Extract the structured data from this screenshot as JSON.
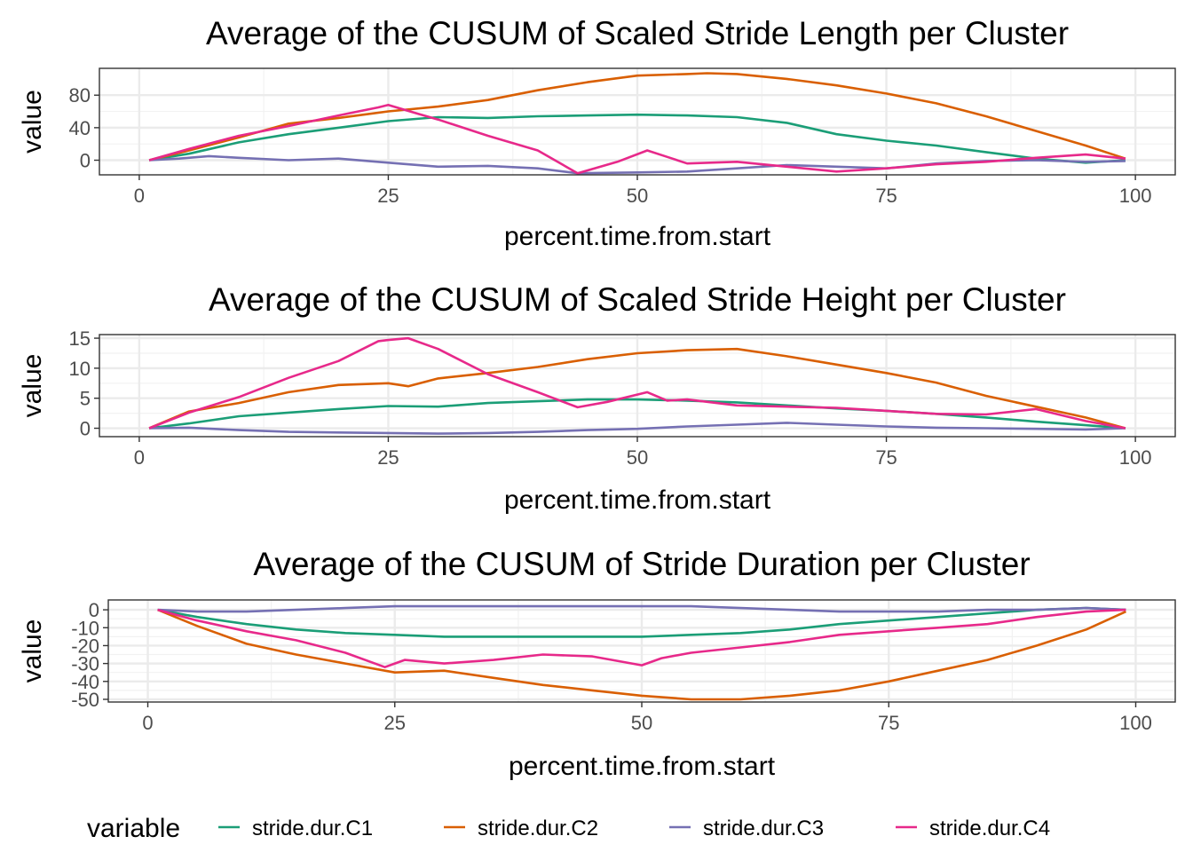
{
  "chart_data": [
    {
      "type": "line",
      "title": "Average of the CUSUM of Scaled Stride Length per Cluster",
      "xlabel": "percent.time.from.start",
      "ylabel": "value",
      "xlim": [
        -4,
        104
      ],
      "ylim": [
        -18,
        113
      ],
      "xticks": [
        0,
        25,
        50,
        75,
        100
      ],
      "yticks": [
        0,
        40,
        80
      ],
      "grid": true,
      "series": [
        {
          "name": "stride.dur.C1",
          "x": [
            1,
            5,
            10,
            15,
            20,
            25,
            30,
            35,
            40,
            45,
            50,
            55,
            60,
            65,
            70,
            75,
            80,
            85,
            90,
            95,
            99
          ],
          "y": [
            0,
            8,
            22,
            32,
            40,
            48,
            53,
            52,
            54,
            55,
            56,
            55,
            53,
            46,
            32,
            24,
            18,
            10,
            2,
            -3,
            0
          ]
        },
        {
          "name": "stride.dur.C2",
          "x": [
            1,
            5,
            10,
            15,
            20,
            25,
            30,
            35,
            40,
            45,
            50,
            55,
            57,
            60,
            65,
            70,
            75,
            80,
            85,
            90,
            95,
            99
          ],
          "y": [
            0,
            12,
            28,
            45,
            52,
            60,
            66,
            74,
            86,
            96,
            104,
            106,
            107,
            106,
            100,
            92,
            82,
            70,
            54,
            36,
            18,
            2
          ]
        },
        {
          "name": "stride.dur.C3",
          "x": [
            1,
            4,
            7,
            10,
            15,
            20,
            25,
            30,
            35,
            40,
            44,
            50,
            55,
            60,
            65,
            70,
            75,
            80,
            85,
            90,
            95,
            99
          ],
          "y": [
            0,
            2,
            5,
            3,
            0,
            2,
            -3,
            -8,
            -7,
            -10,
            -16,
            -15,
            -14,
            -10,
            -6,
            -8,
            -10,
            -4,
            -1,
            0,
            -2,
            -1
          ]
        },
        {
          "name": "stride.dur.C4",
          "x": [
            1,
            5,
            10,
            15,
            20,
            24,
            25,
            28,
            30,
            35,
            40,
            44,
            48,
            51,
            53,
            55,
            60,
            65,
            70,
            75,
            80,
            85,
            90,
            95,
            99
          ],
          "y": [
            0,
            14,
            30,
            42,
            55,
            65,
            68,
            57,
            50,
            30,
            12,
            -16,
            -2,
            12,
            4,
            -4,
            -2,
            -8,
            -14,
            -10,
            -5,
            -2,
            3,
            7,
            2
          ]
        }
      ]
    },
    {
      "type": "line",
      "title": "Average of the CUSUM of Scaled Stride Height per Cluster",
      "xlabel": "percent.time.from.start",
      "ylabel": "value",
      "xlim": [
        -4,
        104
      ],
      "ylim": [
        -1.4,
        15.6
      ],
      "xticks": [
        0,
        25,
        50,
        75,
        100
      ],
      "yticks": [
        0,
        5,
        10,
        15
      ],
      "grid": true,
      "series": [
        {
          "name": "stride.dur.C1",
          "x": [
            1,
            5,
            10,
            15,
            20,
            25,
            30,
            35,
            40,
            45,
            50,
            55,
            60,
            65,
            70,
            75,
            80,
            85,
            90,
            95,
            99
          ],
          "y": [
            0,
            0.8,
            2,
            2.6,
            3.2,
            3.7,
            3.6,
            4.2,
            4.5,
            4.8,
            4.8,
            4.6,
            4.3,
            3.8,
            3.3,
            2.9,
            2.4,
            1.8,
            1.1,
            0.5,
            0
          ]
        },
        {
          "name": "stride.dur.C2",
          "x": [
            1,
            5,
            10,
            15,
            20,
            25,
            27,
            30,
            35,
            40,
            45,
            50,
            55,
            60,
            65,
            70,
            75,
            80,
            85,
            90,
            95,
            99
          ],
          "y": [
            0,
            2.8,
            4.2,
            6,
            7.2,
            7.5,
            7,
            8.3,
            9.2,
            10.2,
            11.5,
            12.5,
            13,
            13.2,
            12,
            10.6,
            9.2,
            7.6,
            5.4,
            3.6,
            1.8,
            0
          ]
        },
        {
          "name": "stride.dur.C3",
          "x": [
            1,
            5,
            10,
            15,
            20,
            25,
            30,
            35,
            40,
            45,
            50,
            55,
            60,
            65,
            70,
            75,
            80,
            85,
            90,
            95,
            99
          ],
          "y": [
            0,
            0.1,
            -0.3,
            -0.6,
            -0.7,
            -0.8,
            -0.9,
            -0.8,
            -0.6,
            -0.3,
            -0.1,
            0.3,
            0.6,
            0.9,
            0.6,
            0.3,
            0.1,
            0,
            -0.1,
            -0.2,
            0
          ]
        },
        {
          "name": "stride.dur.C4",
          "x": [
            1,
            5,
            10,
            15,
            20,
            24,
            25,
            27,
            30,
            35,
            40,
            44,
            47,
            51,
            53,
            55,
            60,
            65,
            70,
            75,
            80,
            85,
            90,
            95,
            99
          ],
          "y": [
            0,
            2.6,
            5.2,
            8.4,
            11.2,
            14.5,
            14.7,
            15,
            13.2,
            9,
            6,
            3.5,
            4.4,
            6,
            4.6,
            4.8,
            3.8,
            3.6,
            3.4,
            2.9,
            2.4,
            2.3,
            3.2,
            1.2,
            0
          ]
        }
      ]
    },
    {
      "type": "line",
      "title": "Average of the CUSUM of Stride Duration per Cluster",
      "xlabel": "percent.time.from.start",
      "ylabel": "value",
      "xlim": [
        -4,
        104
      ],
      "ylim": [
        -51.5,
        5.5
      ],
      "xticks": [
        0,
        25,
        50,
        75,
        100
      ],
      "yticks": [
        0,
        -10,
        -20,
        -30,
        -40,
        -50
      ],
      "grid": true,
      "series": [
        {
          "name": "stride.dur.C1",
          "x": [
            1,
            5,
            10,
            15,
            20,
            25,
            30,
            35,
            40,
            45,
            50,
            55,
            60,
            65,
            70,
            75,
            80,
            85,
            90,
            95,
            99
          ],
          "y": [
            0,
            -4,
            -8,
            -11,
            -13,
            -14,
            -15,
            -15,
            -15,
            -15,
            -15,
            -14,
            -13,
            -11,
            -8,
            -6,
            -4,
            -2,
            0,
            1,
            0
          ]
        },
        {
          "name": "stride.dur.C2",
          "x": [
            1,
            5,
            10,
            15,
            20,
            25,
            30,
            35,
            40,
            45,
            50,
            55,
            60,
            65,
            70,
            75,
            80,
            85,
            90,
            95,
            99
          ],
          "y": [
            0,
            -9,
            -19,
            -25,
            -30,
            -35,
            -34,
            -38,
            -42,
            -45,
            -48,
            -50,
            -50,
            -48,
            -45,
            -40,
            -34,
            -28,
            -20,
            -11,
            -1
          ]
        },
        {
          "name": "stride.dur.C3",
          "x": [
            1,
            5,
            10,
            15,
            20,
            25,
            30,
            35,
            40,
            45,
            50,
            55,
            60,
            65,
            70,
            75,
            80,
            85,
            90,
            95,
            99
          ],
          "y": [
            0,
            -1,
            -1,
            0,
            1,
            2,
            2,
            2,
            2,
            2,
            2,
            2,
            1,
            0,
            -1,
            -1,
            -1,
            0,
            0,
            1,
            0
          ]
        },
        {
          "name": "stride.dur.C4",
          "x": [
            1,
            5,
            10,
            15,
            20,
            24,
            25,
            26,
            30,
            35,
            40,
            45,
            50,
            52,
            55,
            60,
            65,
            70,
            75,
            80,
            85,
            90,
            95,
            99
          ],
          "y": [
            0,
            -6,
            -12,
            -17,
            -24,
            -32,
            -30,
            -28,
            -30,
            -28,
            -25,
            -26,
            -31,
            -27,
            -24,
            -21,
            -18,
            -14,
            -12,
            -10,
            -8,
            -4,
            -1,
            0
          ]
        }
      ]
    }
  ],
  "legend": {
    "title": "variable",
    "position": "bottom",
    "items": [
      {
        "label": "stride.dur.C1",
        "color": "#1b9e77"
      },
      {
        "label": "stride.dur.C2",
        "color": "#d95f02"
      },
      {
        "label": "stride.dur.C3",
        "color": "#7570b3"
      },
      {
        "label": "stride.dur.C4",
        "color": "#e7298a"
      }
    ]
  }
}
